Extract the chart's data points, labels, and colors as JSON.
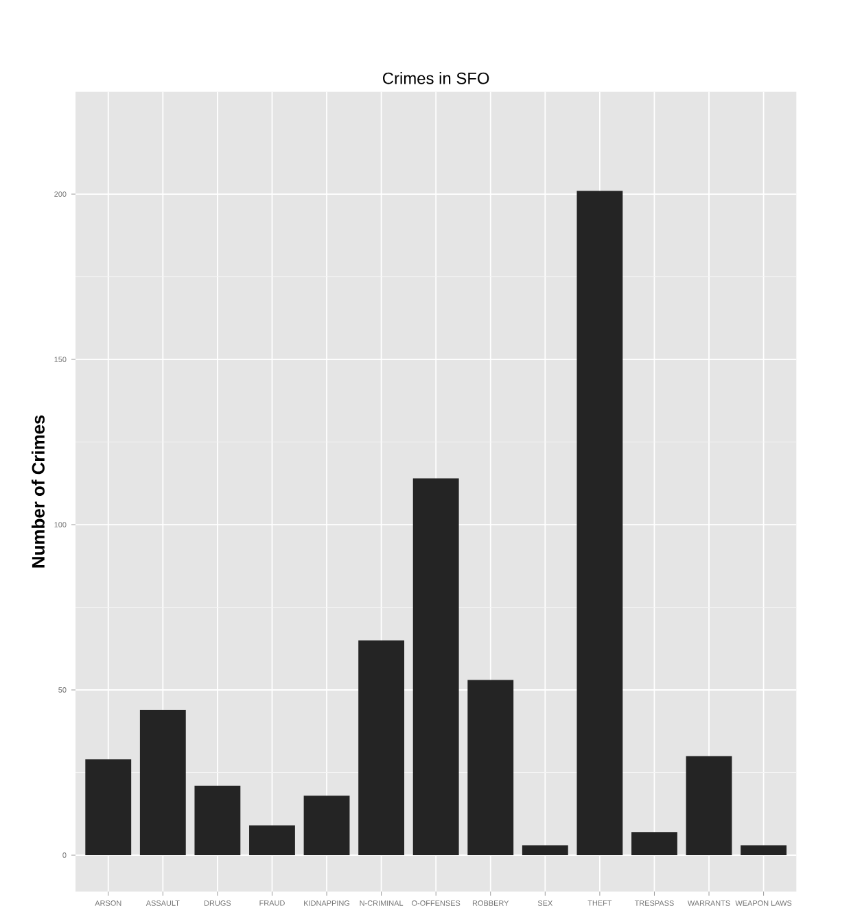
{
  "chart_data": {
    "type": "bar",
    "title": "Crimes in SFO",
    "ylabel": "Number of Crimes",
    "categories": [
      "ARSON",
      "ASSAULT",
      "DRUGS",
      "FRAUD",
      "KIDNAPPING",
      "N-CRIMINAL",
      "O-OFFENSES",
      "ROBBERY",
      "SEX",
      "THEFT",
      "TRESPASS",
      "WARRANTS",
      "WEAPON LAWS"
    ],
    "values": [
      29,
      44,
      21,
      9,
      18,
      65,
      114,
      53,
      3,
      201,
      7,
      30,
      3
    ],
    "color": "#242424",
    "ylim": [
      -11,
      231
    ],
    "yticks": [
      0,
      50,
      100,
      150,
      200
    ],
    "grid": true
  }
}
